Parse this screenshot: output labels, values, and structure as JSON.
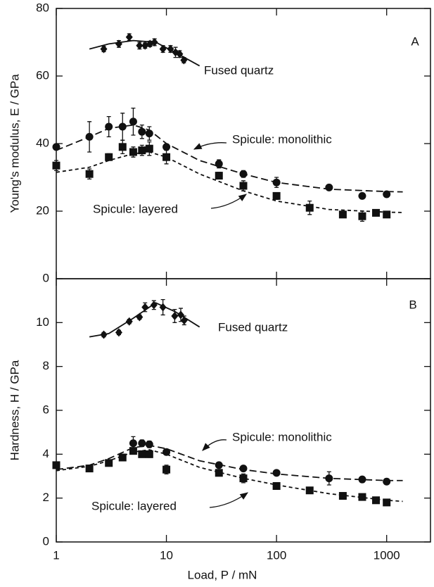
{
  "chart_data": [
    {
      "type": "scatter",
      "panel_label": "A",
      "ylabel": "Young's modulus, E / GPa",
      "xscale": "log",
      "xlim": [
        1,
        2500
      ],
      "xticks": [
        1,
        10,
        100,
        1000
      ],
      "xtick_labels": false,
      "ylim": [
        0,
        80
      ],
      "yticks": [
        0,
        20,
        40,
        60,
        80
      ],
      "series": [
        {
          "name": "Fused quartz",
          "marker": "diamond",
          "color": "#111111",
          "x": [
            2.7,
            3.7,
            4.6,
            5.7,
            6.4,
            7.1,
            7.8,
            9.3,
            10.9,
            12.1,
            13.2,
            14.4
          ],
          "values": [
            68,
            69.5,
            71.5,
            69,
            69,
            69.5,
            70,
            68,
            68,
            67,
            66.5,
            64.7
          ],
          "errors": [
            0.8,
            1,
            1,
            1,
            0.8,
            0.8,
            1,
            1,
            1,
            1.5,
            1,
            0.8
          ],
          "fit": {
            "line_style": "solid",
            "x": [
              2,
              3,
              5,
              8,
              12,
              20
            ],
            "values": [
              68,
              69.5,
              70.5,
              70,
              67,
              63
            ]
          }
        },
        {
          "name": "Spicule: monolithic",
          "marker": "circle",
          "color": "#111111",
          "x": [
            1,
            2,
            3,
            4,
            5,
            6,
            7,
            10,
            30,
            50,
            100,
            300,
            600,
            1000
          ],
          "values": [
            39,
            42,
            45,
            45,
            46.5,
            43.5,
            43,
            39,
            34,
            31,
            28.5,
            27,
            24.5,
            25
          ],
          "errors": [
            0.8,
            4.5,
            3,
            4,
            4,
            2,
            2,
            0.5,
            1.2,
            1,
            1.5,
            0.5,
            0.5,
            0.5
          ],
          "fit": {
            "line_style": "dashed",
            "x": [
              1,
              2,
              3,
              5,
              7,
              10,
              20,
              50,
              100,
              300,
              1000,
              1400
            ],
            "values": [
              38,
              42,
              44.5,
              45.5,
              44,
              40,
              35,
              31,
              28.5,
              26.5,
              25.8,
              25.7
            ]
          }
        },
        {
          "name": "Spicule: layered",
          "marker": "square",
          "color": "#111111",
          "x": [
            1,
            2,
            3,
            4,
            5,
            6,
            7,
            10,
            30,
            50,
            100,
            200,
            400,
            600,
            800,
            1000
          ],
          "values": [
            33.5,
            31,
            36,
            39,
            37.5,
            38,
            38.5,
            36,
            30.5,
            27.5,
            24.5,
            21,
            19,
            18.5,
            19.5,
            19
          ],
          "errors": [
            1.5,
            1.5,
            1,
            2,
            1.5,
            1.5,
            2,
            2,
            1,
            1.5,
            1,
            2,
            0.5,
            1.5,
            0.7,
            0.7
          ],
          "fit": {
            "line_style": "dotted",
            "x": [
              1,
              2,
              3,
              5,
              7,
              10,
              20,
              50,
              100,
              300,
              1000,
              1400
            ],
            "values": [
              31.5,
              33,
              35,
              37,
              37.5,
              36,
              31,
              26,
              23,
              20.5,
              19.7,
              19.6
            ]
          }
        }
      ]
    },
    {
      "type": "scatter",
      "panel_label": "B",
      "ylabel": "Hardness, H / GPa",
      "xlabel": "Load, P / mN",
      "xscale": "log",
      "xlim": [
        1,
        2500
      ],
      "xticks": [
        1,
        10,
        100,
        1000
      ],
      "xtick_labels": true,
      "ylim": [
        0,
        12
      ],
      "yticks": [
        0,
        2,
        4,
        6,
        8,
        10
      ],
      "series": [
        {
          "name": "Fused quartz",
          "marker": "diamond",
          "color": "#111111",
          "x": [
            2.7,
            3.7,
            4.6,
            5.7,
            6.4,
            7.7,
            9.3,
            11.9,
            13.5,
            14.5
          ],
          "values": [
            9.45,
            9.55,
            10.05,
            10.25,
            10.7,
            10.8,
            10.7,
            10.3,
            10.35,
            10.1
          ],
          "errors": [
            0.1,
            0.1,
            0.1,
            0.1,
            0.2,
            0.2,
            0.35,
            0.3,
            0.3,
            0.2
          ],
          "fit": {
            "line_style": "solid",
            "x": [
              2,
              3,
              5,
              8,
              12,
              20
            ],
            "values": [
              9.35,
              9.5,
              10.2,
              10.9,
              10.5,
              9.8
            ]
          }
        },
        {
          "name": "Spicule: monolithic",
          "marker": "circle",
          "color": "#111111",
          "x": [
            5,
            6,
            7,
            10,
            30,
            50,
            100,
            300,
            600,
            1000
          ],
          "values": [
            4.5,
            4.5,
            4.45,
            4.1,
            3.5,
            3.35,
            3.15,
            2.9,
            2.85,
            2.75
          ],
          "errors": [
            0.3,
            0.15,
            0.15,
            0.1,
            0.1,
            0.1,
            0.1,
            0.3,
            0.1,
            0.1
          ],
          "fit": {
            "line_style": "dashed",
            "x": [
              1,
              2,
              3,
              5,
              7,
              10,
              20,
              50,
              100,
              300,
              1000,
              1400
            ],
            "values": [
              3.3,
              3.5,
              3.8,
              4.3,
              4.4,
              4.25,
              3.7,
              3.3,
              3.1,
              2.9,
              2.8,
              2.8
            ]
          }
        },
        {
          "name": "Spicule: layered",
          "marker": "square",
          "color": "#111111",
          "x": [
            1,
            2,
            3,
            4,
            5,
            6,
            7,
            10,
            30,
            50,
            100,
            200,
            400,
            600,
            800,
            1000
          ],
          "values": [
            3.5,
            3.35,
            3.6,
            3.85,
            4.15,
            4,
            4,
            3.3,
            3.15,
            2.9,
            2.55,
            2.35,
            2.1,
            2.05,
            1.9,
            1.8
          ],
          "errors": [
            0.15,
            0.15,
            0.1,
            0.1,
            0.1,
            0.1,
            0.15,
            0.2,
            0.1,
            0.2,
            0.1,
            0.1,
            0.1,
            0.1,
            0.1,
            0.1
          ],
          "fit": {
            "line_style": "dotted",
            "x": [
              1,
              2,
              3,
              5,
              7,
              10,
              20,
              50,
              100,
              300,
              1000,
              1400
            ],
            "values": [
              3.25,
              3.45,
              3.7,
              4.1,
              4.2,
              4,
              3.4,
              2.9,
              2.6,
              2.2,
              1.9,
              1.85
            ]
          }
        }
      ]
    }
  ]
}
